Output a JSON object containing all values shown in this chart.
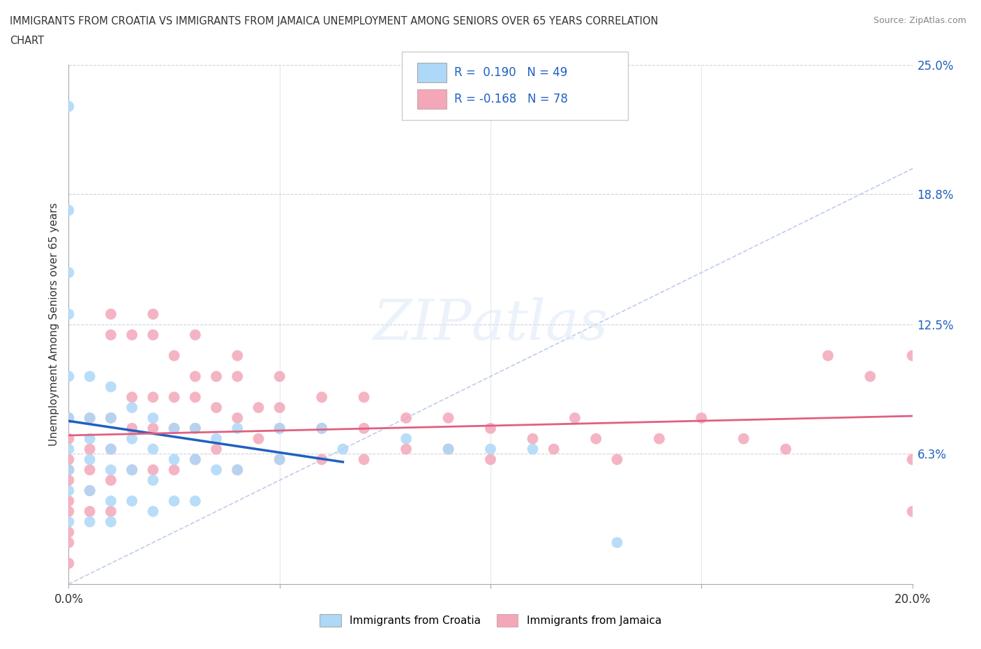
{
  "title_line1": "IMMIGRANTS FROM CROATIA VS IMMIGRANTS FROM JAMAICA UNEMPLOYMENT AMONG SENIORS OVER 65 YEARS CORRELATION",
  "title_line2": "CHART",
  "source": "Source: ZipAtlas.com",
  "ylabel": "Unemployment Among Seniors over 65 years",
  "xlim": [
    0.0,
    0.2
  ],
  "ylim": [
    0.0,
    0.25
  ],
  "x_ticks": [
    0.0,
    0.05,
    0.1,
    0.15,
    0.2
  ],
  "x_tick_labels": [
    "0.0%",
    "",
    "",
    "",
    "20.0%"
  ],
  "y_ticks": [
    0.0,
    0.063,
    0.125,
    0.188,
    0.25
  ],
  "y_tick_labels_right": [
    "",
    "6.3%",
    "12.5%",
    "18.8%",
    "25.0%"
  ],
  "croatia_color": "#add8f7",
  "jamaica_color": "#f4a7b9",
  "croatia_line_color": "#2060c0",
  "jamaica_line_color": "#e06080",
  "croatia_R": 0.19,
  "croatia_N": 49,
  "jamaica_R": -0.168,
  "jamaica_N": 78,
  "background_color": "#ffffff",
  "grid_color": "#d0d0e0",
  "legend_color": "#2060c0",
  "croatia_x": [
    0.0,
    0.0,
    0.0,
    0.0,
    0.0,
    0.0,
    0.0,
    0.0,
    0.0,
    0.0,
    0.005,
    0.005,
    0.005,
    0.005,
    0.005,
    0.005,
    0.01,
    0.01,
    0.01,
    0.01,
    0.01,
    0.01,
    0.015,
    0.015,
    0.015,
    0.015,
    0.02,
    0.02,
    0.02,
    0.02,
    0.025,
    0.025,
    0.025,
    0.03,
    0.03,
    0.03,
    0.035,
    0.035,
    0.04,
    0.04,
    0.05,
    0.05,
    0.06,
    0.065,
    0.08,
    0.09,
    0.1,
    0.11,
    0.13
  ],
  "croatia_y": [
    0.23,
    0.18,
    0.15,
    0.13,
    0.1,
    0.08,
    0.065,
    0.055,
    0.045,
    0.03,
    0.1,
    0.08,
    0.07,
    0.06,
    0.045,
    0.03,
    0.095,
    0.08,
    0.065,
    0.055,
    0.04,
    0.03,
    0.085,
    0.07,
    0.055,
    0.04,
    0.08,
    0.065,
    0.05,
    0.035,
    0.075,
    0.06,
    0.04,
    0.075,
    0.06,
    0.04,
    0.07,
    0.055,
    0.075,
    0.055,
    0.075,
    0.06,
    0.075,
    0.065,
    0.07,
    0.065,
    0.065,
    0.065,
    0.02
  ],
  "jamaica_x": [
    0.0,
    0.0,
    0.0,
    0.0,
    0.0,
    0.0,
    0.0,
    0.0,
    0.0,
    0.0,
    0.005,
    0.005,
    0.005,
    0.005,
    0.005,
    0.01,
    0.01,
    0.01,
    0.01,
    0.01,
    0.01,
    0.015,
    0.015,
    0.015,
    0.015,
    0.02,
    0.02,
    0.02,
    0.02,
    0.02,
    0.025,
    0.025,
    0.025,
    0.025,
    0.03,
    0.03,
    0.03,
    0.03,
    0.03,
    0.035,
    0.035,
    0.035,
    0.04,
    0.04,
    0.04,
    0.04,
    0.045,
    0.045,
    0.05,
    0.05,
    0.05,
    0.05,
    0.06,
    0.06,
    0.06,
    0.07,
    0.07,
    0.07,
    0.08,
    0.08,
    0.09,
    0.09,
    0.1,
    0.1,
    0.11,
    0.115,
    0.12,
    0.125,
    0.13,
    0.14,
    0.15,
    0.16,
    0.17,
    0.18,
    0.19,
    0.2,
    0.2,
    0.2
  ],
  "jamaica_y": [
    0.08,
    0.07,
    0.06,
    0.055,
    0.05,
    0.04,
    0.035,
    0.025,
    0.02,
    0.01,
    0.08,
    0.065,
    0.055,
    0.045,
    0.035,
    0.13,
    0.12,
    0.08,
    0.065,
    0.05,
    0.035,
    0.12,
    0.09,
    0.075,
    0.055,
    0.13,
    0.12,
    0.09,
    0.075,
    0.055,
    0.11,
    0.09,
    0.075,
    0.055,
    0.12,
    0.1,
    0.09,
    0.075,
    0.06,
    0.1,
    0.085,
    0.065,
    0.11,
    0.1,
    0.08,
    0.055,
    0.085,
    0.07,
    0.1,
    0.085,
    0.075,
    0.06,
    0.09,
    0.075,
    0.06,
    0.09,
    0.075,
    0.06,
    0.08,
    0.065,
    0.08,
    0.065,
    0.075,
    0.06,
    0.07,
    0.065,
    0.08,
    0.07,
    0.06,
    0.07,
    0.08,
    0.07,
    0.065,
    0.11,
    0.1,
    0.11,
    0.06,
    0.035
  ]
}
